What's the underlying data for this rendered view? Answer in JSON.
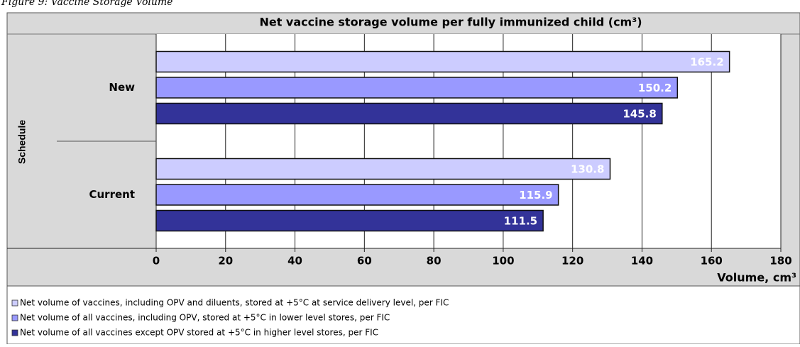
{
  "caption": "Figure 9: Vaccine Storage Volume",
  "chart_data": {
    "type": "hbar",
    "title": "Net vaccine storage volume per fully immunized child (cm³)",
    "x_label": "Volume, cm³",
    "y_label": "Schedule",
    "categories": [
      "New",
      "Current"
    ],
    "series": [
      {
        "name": "Net volume of vaccines, including OPV and diluents, stored at +5°C at service delivery level, per FIC",
        "color": "#ccccff",
        "values": [
          165.2,
          130.8
        ]
      },
      {
        "name": "Net volume of all vaccines, including OPV, stored at +5°C in lower level stores, per FIC",
        "color": "#9999ff",
        "values": [
          150.2,
          115.9
        ]
      },
      {
        "name": "Net volume of all vaccines except OPV stored at +5°C in higher level stores, per FIC",
        "color": "#333399",
        "values": [
          145.8,
          111.5
        ]
      }
    ],
    "xlim": [
      0,
      180
    ],
    "xticks": [
      0,
      20,
      40,
      60,
      80,
      100,
      120,
      140,
      160,
      180
    ],
    "grid": true,
    "legend": "bottom"
  }
}
